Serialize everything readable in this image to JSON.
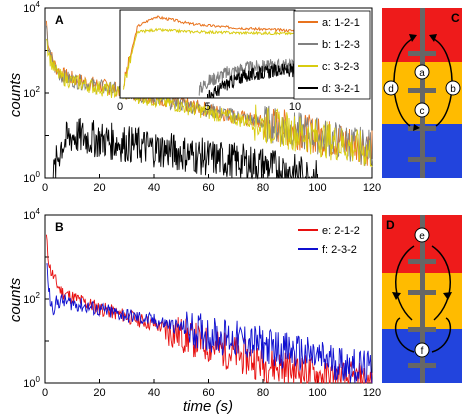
{
  "chart_data": [
    {
      "type": "line",
      "panel_label": "A",
      "xlabel": "",
      "ylabel": "counts",
      "xlim": [
        0,
        120
      ],
      "ylim_log10": [
        0,
        4
      ],
      "yscale": "log",
      "x_ticks": [
        "0",
        "20",
        "40",
        "60",
        "80",
        "100",
        "120"
      ],
      "y_ticks": [
        "10^0",
        "10^2",
        "10^4"
      ],
      "legend_position": "top-right",
      "series": [
        {
          "name": "a: 1-2-1",
          "color": "#e8731e",
          "x": [
            0.5,
            1,
            2,
            4,
            6,
            10,
            20,
            40,
            60,
            80,
            100,
            120
          ],
          "y": [
            5000,
            2000,
            800,
            400,
            280,
            220,
            150,
            80,
            40,
            20,
            10,
            5
          ]
        },
        {
          "name": "b: 1-2-3",
          "color": "#808080",
          "x": [
            0.5,
            1,
            2,
            4,
            6,
            10,
            20,
            40,
            60,
            80,
            100,
            120
          ],
          "y": [
            3000,
            1500,
            700,
            350,
            250,
            200,
            140,
            75,
            40,
            20,
            10,
            5
          ]
        },
        {
          "name": "c: 3-2-3",
          "color": "#d8cc10",
          "x": [
            0.5,
            1,
            2,
            4,
            6,
            10,
            20,
            40,
            60,
            80,
            100,
            120
          ],
          "y": [
            2500,
            1200,
            600,
            320,
            230,
            190,
            130,
            70,
            35,
            18,
            9,
            4
          ]
        },
        {
          "name": "d: 3-2-1",
          "color": "#000000",
          "x": [
            3,
            4,
            6,
            10,
            20,
            40,
            60,
            80,
            100
          ],
          "y": [
            1,
            2,
            6,
            10,
            8,
            5,
            3,
            2,
            1
          ]
        }
      ]
    },
    {
      "type": "line",
      "panel_label": "",
      "inset_of": "A",
      "xlim": [
        0,
        10
      ],
      "x_ticks": [
        "0",
        "5",
        "10"
      ],
      "yscale": "log",
      "series": [
        {
          "name": "a: 1-2-1",
          "color": "#e8731e",
          "x": [
            0.2,
            1,
            2,
            3,
            4,
            6,
            8,
            10
          ],
          "y": [
            3,
            400,
            900,
            700,
            500,
            380,
            320,
            280
          ]
        },
        {
          "name": "b: 1-2-3",
          "color": "#808080",
          "x": [
            4.5,
            5,
            6,
            7,
            8,
            10
          ],
          "y": [
            2,
            4,
            8,
            12,
            14,
            16
          ]
        },
        {
          "name": "c: 3-2-3",
          "color": "#d8cc10",
          "x": [
            0.2,
            1,
            2,
            3,
            4,
            6,
            8,
            10
          ],
          "y": [
            3,
            250,
            300,
            280,
            260,
            240,
            230,
            220
          ]
        },
        {
          "name": "d: 3-2-1",
          "color": "#000000",
          "x": [
            5,
            6,
            7,
            8,
            9,
            10
          ],
          "y": [
            1,
            3,
            6,
            8,
            10,
            10
          ]
        }
      ]
    },
    {
      "type": "line",
      "panel_label": "B",
      "xlabel": "time (s)",
      "ylabel": "counts",
      "xlim": [
        0,
        120
      ],
      "ylim_log10": [
        0,
        4
      ],
      "yscale": "log",
      "x_ticks": [
        "0",
        "20",
        "40",
        "60",
        "80",
        "100",
        "120"
      ],
      "y_ticks": [
        "10^0",
        "10^2",
        "10^4"
      ],
      "legend_position": "top-right",
      "series": [
        {
          "name": "e: 2-1-2",
          "color": "#e81010",
          "x": [
            0.5,
            1,
            2,
            4,
            6,
            10,
            20,
            40,
            60,
            80,
            100,
            120
          ],
          "y": [
            3000,
            1200,
            500,
            250,
            150,
            110,
            60,
            25,
            8,
            3,
            1.5,
            1
          ]
        },
        {
          "name": "f: 2-3-2",
          "color": "#1010d0",
          "x": [
            0.5,
            1,
            2,
            3,
            4,
            6,
            10,
            20,
            40,
            60,
            80,
            100,
            120
          ],
          "y": [
            900,
            300,
            80,
            60,
            80,
            90,
            80,
            55,
            30,
            15,
            8,
            4,
            2
          ]
        }
      ]
    }
  ],
  "diagram_c": {
    "panel_label": "C",
    "bands_top_to_bottom": [
      "#ee1b1b",
      "#ffbb00",
      "#2244dd"
    ],
    "markers": [
      "a",
      "b",
      "c",
      "d"
    ]
  },
  "diagram_d": {
    "panel_label": "D",
    "bands_top_to_bottom": [
      "#ee1b1b",
      "#ffbb00",
      "#2244dd"
    ],
    "markers": [
      "e",
      "f"
    ]
  }
}
